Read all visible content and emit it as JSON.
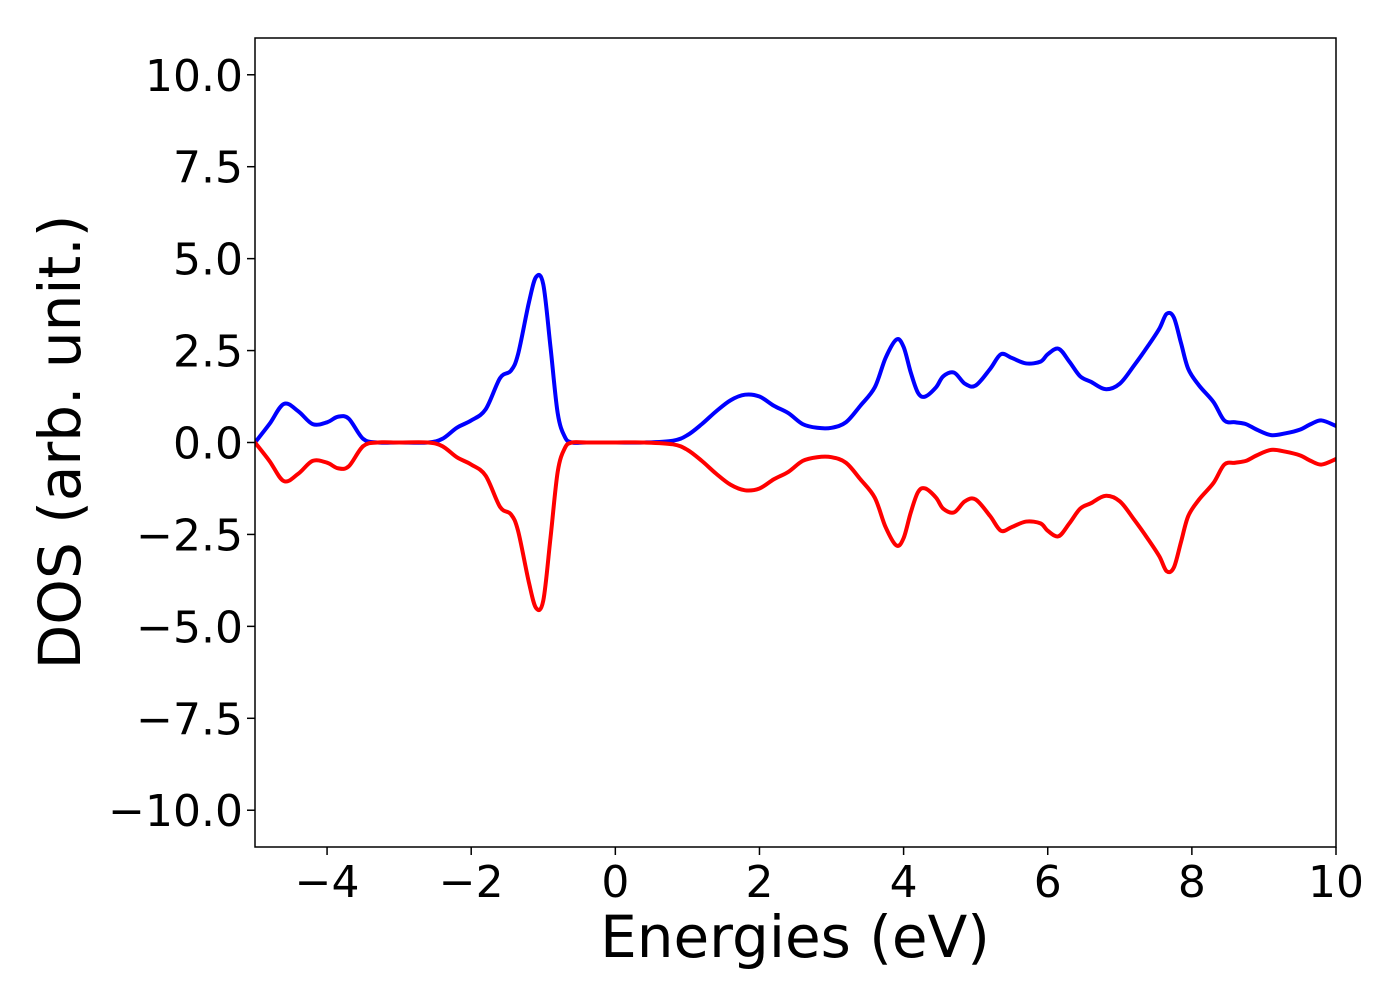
{
  "chart_data": {
    "type": "line",
    "title": "",
    "xlabel": "Energies (eV)",
    "ylabel": "DOS (arb. unit.)",
    "xlim": [
      -5,
      10
    ],
    "ylim": [
      -11,
      11
    ],
    "x_ticks": [
      -4,
      -2,
      0,
      2,
      4,
      6,
      8,
      10
    ],
    "y_ticks": [
      -10,
      -7.5,
      -5,
      -2.5,
      0,
      2.5,
      5,
      7.5,
      10
    ],
    "x_tick_labels": [
      "−4",
      "−2",
      "0",
      "2",
      "4",
      "6",
      "8",
      "10"
    ],
    "y_tick_labels": [
      "−10.0",
      "−7.5",
      "−5.0",
      "−2.5",
      "0.0",
      "2.5",
      "5.0",
      "7.5",
      "10.0"
    ],
    "grid": false,
    "legend": "none",
    "colors": {
      "up": "#0000ff",
      "down": "#ff0000",
      "axes": "#000000"
    },
    "series": [
      {
        "color": "#0000ff",
        "x": [
          -5.0,
          -4.8,
          -4.6,
          -4.4,
          -4.2,
          -4.0,
          -3.85,
          -3.7,
          -3.5,
          -3.3,
          -3.0,
          -2.6,
          -2.4,
          -2.2,
          -2.0,
          -1.8,
          -1.6,
          -1.45,
          -1.35,
          -1.2,
          -1.1,
          -1.0,
          -0.9,
          -0.8,
          -0.7,
          -0.6,
          -0.4,
          0.0,
          0.4,
          0.8,
          1.0,
          1.2,
          1.4,
          1.6,
          1.8,
          2.0,
          2.2,
          2.4,
          2.6,
          2.8,
          3.0,
          3.2,
          3.4,
          3.6,
          3.75,
          3.9,
          4.0,
          4.1,
          4.2,
          4.3,
          4.45,
          4.55,
          4.7,
          4.85,
          5.0,
          5.2,
          5.35,
          5.5,
          5.7,
          5.9,
          6.0,
          6.15,
          6.3,
          6.45,
          6.6,
          6.8,
          7.0,
          7.2,
          7.4,
          7.55,
          7.65,
          7.75,
          7.85,
          7.95,
          8.1,
          8.3,
          8.45,
          8.6,
          8.75,
          8.9,
          9.1,
          9.3,
          9.5,
          9.65,
          9.8,
          10.0
        ],
        "y": [
          0.0,
          0.5,
          1.05,
          0.85,
          0.5,
          0.55,
          0.7,
          0.65,
          0.1,
          0.0,
          0.0,
          0.0,
          0.1,
          0.4,
          0.6,
          0.9,
          1.75,
          1.95,
          2.4,
          3.8,
          4.5,
          4.3,
          2.6,
          0.8,
          0.15,
          0.0,
          0.0,
          0.0,
          0.0,
          0.05,
          0.2,
          0.5,
          0.85,
          1.15,
          1.3,
          1.25,
          1.0,
          0.8,
          0.5,
          0.4,
          0.4,
          0.55,
          1.0,
          1.5,
          2.3,
          2.8,
          2.6,
          1.9,
          1.35,
          1.25,
          1.5,
          1.8,
          1.9,
          1.6,
          1.55,
          2.0,
          2.4,
          2.3,
          2.15,
          2.2,
          2.4,
          2.55,
          2.2,
          1.8,
          1.65,
          1.45,
          1.6,
          2.1,
          2.65,
          3.1,
          3.5,
          3.4,
          2.7,
          2.0,
          1.55,
          1.1,
          0.6,
          0.55,
          0.5,
          0.35,
          0.2,
          0.25,
          0.35,
          0.5,
          0.6,
          0.45
        ]
      },
      {
        "color": "#ff0000",
        "x": [
          -5.0,
          -4.8,
          -4.6,
          -4.4,
          -4.2,
          -4.0,
          -3.85,
          -3.7,
          -3.5,
          -3.3,
          -3.0,
          -2.6,
          -2.4,
          -2.2,
          -2.0,
          -1.8,
          -1.6,
          -1.45,
          -1.35,
          -1.2,
          -1.1,
          -1.0,
          -0.9,
          -0.8,
          -0.7,
          -0.6,
          -0.4,
          0.0,
          0.4,
          0.8,
          1.0,
          1.2,
          1.4,
          1.6,
          1.8,
          2.0,
          2.2,
          2.4,
          2.6,
          2.8,
          3.0,
          3.2,
          3.4,
          3.6,
          3.75,
          3.9,
          4.0,
          4.1,
          4.2,
          4.3,
          4.45,
          4.55,
          4.7,
          4.85,
          5.0,
          5.2,
          5.35,
          5.5,
          5.7,
          5.9,
          6.0,
          6.15,
          6.3,
          6.45,
          6.6,
          6.8,
          7.0,
          7.2,
          7.4,
          7.55,
          7.65,
          7.75,
          7.85,
          7.95,
          8.1,
          8.3,
          8.45,
          8.6,
          8.75,
          8.9,
          9.1,
          9.3,
          9.5,
          9.65,
          9.8,
          10.0
        ],
        "y": [
          0.0,
          -0.5,
          -1.05,
          -0.85,
          -0.5,
          -0.55,
          -0.7,
          -0.65,
          -0.1,
          0.0,
          0.0,
          0.0,
          -0.1,
          -0.4,
          -0.6,
          -0.9,
          -1.75,
          -1.95,
          -2.4,
          -3.8,
          -4.5,
          -4.3,
          -2.6,
          -0.8,
          -0.15,
          0.0,
          0.0,
          0.0,
          0.0,
          -0.05,
          -0.2,
          -0.5,
          -0.85,
          -1.15,
          -1.3,
          -1.25,
          -1.0,
          -0.8,
          -0.5,
          -0.4,
          -0.4,
          -0.55,
          -1.0,
          -1.5,
          -2.3,
          -2.8,
          -2.6,
          -1.9,
          -1.35,
          -1.25,
          -1.5,
          -1.8,
          -1.9,
          -1.6,
          -1.55,
          -2.0,
          -2.4,
          -2.3,
          -2.15,
          -2.2,
          -2.4,
          -2.55,
          -2.2,
          -1.8,
          -1.65,
          -1.45,
          -1.6,
          -2.1,
          -2.65,
          -3.1,
          -3.5,
          -3.4,
          -2.7,
          -2.0,
          -1.55,
          -1.1,
          -0.6,
          -0.55,
          -0.5,
          -0.35,
          -0.2,
          -0.25,
          -0.35,
          -0.5,
          -0.6,
          -0.45
        ]
      }
    ]
  }
}
